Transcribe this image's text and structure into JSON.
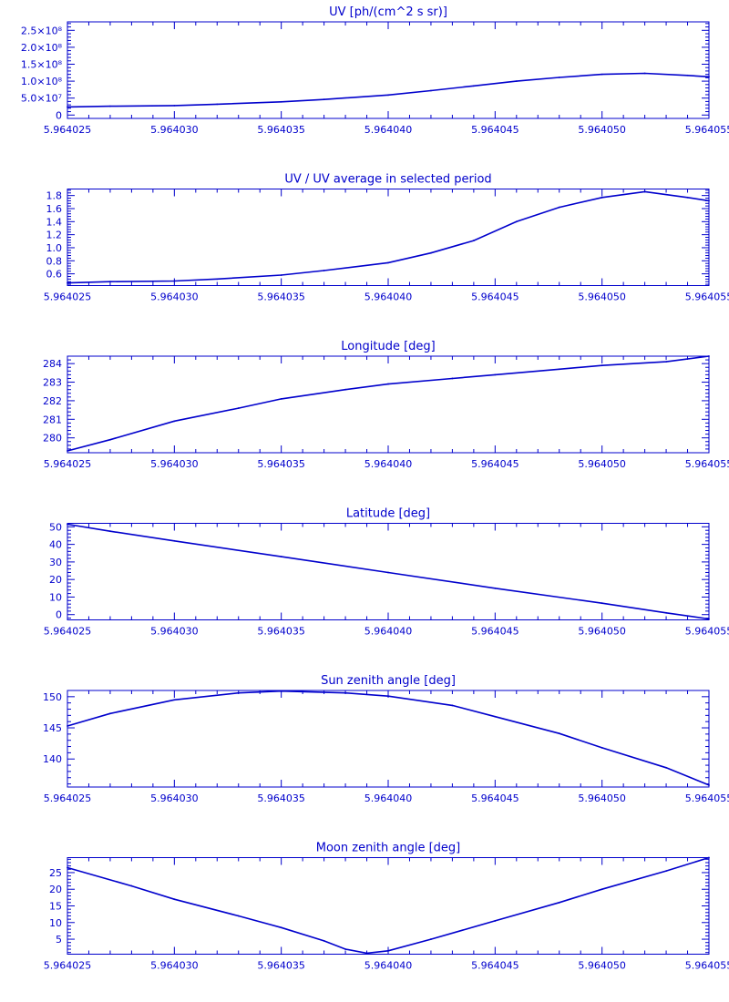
{
  "page": {
    "background": "#ffffff",
    "ink_color": "#0000cc"
  },
  "chart_data": [
    {
      "type": "line",
      "title": "UV [ph/(cm^2 s sr)]",
      "xlim": [
        5.964025,
        5.964055
      ],
      "ylim": [
        -10000000.0,
        275000000.0
      ],
      "x_ticks": [
        5.964025,
        5.96403,
        5.964035,
        5.96404,
        5.964045,
        5.96405,
        5.964055
      ],
      "x_tick_labels": [
        "5.964025",
        "5.964030",
        "5.964035",
        "5.964040",
        "5.964045",
        "5.964050",
        "5.964055"
      ],
      "y_ticks": [
        0,
        50000000.0,
        100000000.0,
        150000000.0,
        200000000.0,
        250000000.0
      ],
      "y_tick_labels": [
        "0",
        "5.0×10⁷",
        "1.0×10⁸",
        "1.5×10⁸",
        "2.0×10⁸",
        "2.5×10⁸"
      ],
      "series": [
        {
          "x": [
            5.964025,
            5.964027,
            5.96403,
            5.964032,
            5.964035,
            5.964037,
            5.96404,
            5.964042,
            5.964044,
            5.964046,
            5.964048,
            5.96405,
            5.964052,
            5.964054,
            5.964055
          ],
          "y": [
            24000000.0,
            26000000.0,
            28000000.0,
            32000000.0,
            39000000.0,
            46000000.0,
            59000000.0,
            72000000.0,
            86000000.0,
            100000000.0,
            111000000.0,
            120000000.0,
            123000000.0,
            117000000.0,
            113000000.0
          ]
        }
      ]
    },
    {
      "type": "line",
      "title": "UV / UV average in selected period",
      "xlim": [
        5.964025,
        5.964055
      ],
      "ylim": [
        0.42,
        1.9
      ],
      "x_ticks": [
        5.964025,
        5.96403,
        5.964035,
        5.96404,
        5.964045,
        5.96405,
        5.964055
      ],
      "x_tick_labels": [
        "5.964025",
        "5.964030",
        "5.964035",
        "5.964040",
        "5.964045",
        "5.964050",
        "5.964055"
      ],
      "y_ticks": [
        0.6,
        0.8,
        1.0,
        1.2,
        1.4,
        1.6,
        1.8
      ],
      "y_tick_labels": [
        "0.6",
        "0.8",
        "1.0",
        "1.2",
        "1.4",
        "1.6",
        "1.8"
      ],
      "series": [
        {
          "x": [
            5.964025,
            5.964027,
            5.96403,
            5.964032,
            5.964035,
            5.964037,
            5.96404,
            5.964042,
            5.964044,
            5.964046,
            5.964048,
            5.96405,
            5.964052,
            5.964054,
            5.964055
          ],
          "y": [
            0.46,
            0.48,
            0.49,
            0.52,
            0.58,
            0.65,
            0.77,
            0.92,
            1.11,
            1.4,
            1.62,
            1.77,
            1.86,
            1.77,
            1.72
          ]
        }
      ]
    },
    {
      "type": "line",
      "title": "Longitude [deg]",
      "xlim": [
        5.964025,
        5.964055
      ],
      "ylim": [
        279.2,
        284.4
      ],
      "x_ticks": [
        5.964025,
        5.96403,
        5.964035,
        5.96404,
        5.964045,
        5.96405,
        5.964055
      ],
      "x_tick_labels": [
        "5.964025",
        "5.964030",
        "5.964035",
        "5.964040",
        "5.964045",
        "5.964050",
        "5.964055"
      ],
      "y_ticks": [
        280,
        281,
        282,
        283,
        284
      ],
      "y_tick_labels": [
        "280",
        "281",
        "282",
        "283",
        "284"
      ],
      "series": [
        {
          "x": [
            5.964025,
            5.964027,
            5.96403,
            5.964033,
            5.964035,
            5.964038,
            5.96404,
            5.964043,
            5.964045,
            5.964048,
            5.96405,
            5.964053,
            5.964055
          ],
          "y": [
            279.3,
            279.9,
            280.9,
            281.6,
            282.1,
            282.6,
            282.9,
            283.2,
            283.4,
            283.7,
            283.9,
            284.1,
            284.4
          ]
        }
      ]
    },
    {
      "type": "line",
      "title": "Latitude [deg]",
      "xlim": [
        5.964025,
        5.964055
      ],
      "ylim": [
        -3,
        52
      ],
      "x_ticks": [
        5.964025,
        5.96403,
        5.964035,
        5.96404,
        5.964045,
        5.96405,
        5.964055
      ],
      "x_tick_labels": [
        "5.964025",
        "5.964030",
        "5.964035",
        "5.964040",
        "5.964045",
        "5.964050",
        "5.964055"
      ],
      "y_ticks": [
        0,
        10,
        20,
        30,
        40,
        50
      ],
      "y_tick_labels": [
        "0",
        "10",
        "20",
        "30",
        "40",
        "50"
      ],
      "series": [
        {
          "x": [
            5.964025,
            5.964027,
            5.96403,
            5.964035,
            5.96404,
            5.964045,
            5.96405,
            5.964053,
            5.964055
          ],
          "y": [
            51.5,
            47.5,
            42,
            33,
            24,
            15,
            6.5,
            1,
            -2.5
          ]
        }
      ]
    },
    {
      "type": "line",
      "title": "Sun zenith angle [deg]",
      "xlim": [
        5.964025,
        5.964055
      ],
      "ylim": [
        135.5,
        151
      ],
      "x_ticks": [
        5.964025,
        5.96403,
        5.964035,
        5.96404,
        5.964045,
        5.96405,
        5.964055
      ],
      "x_tick_labels": [
        "5.964025",
        "5.964030",
        "5.964035",
        "5.964040",
        "5.964045",
        "5.964050",
        "5.964055"
      ],
      "y_ticks": [
        140,
        145,
        150
      ],
      "y_tick_labels": [
        "140",
        "145",
        "150"
      ],
      "series": [
        {
          "x": [
            5.964025,
            5.964027,
            5.96403,
            5.964033,
            5.964035,
            5.964038,
            5.96404,
            5.964043,
            5.964045,
            5.964048,
            5.96405,
            5.964053,
            5.964055
          ],
          "y": [
            145.3,
            147.3,
            149.5,
            150.6,
            150.9,
            150.6,
            150.1,
            148.6,
            146.8,
            144.1,
            141.8,
            138.6,
            135.8
          ]
        }
      ]
    },
    {
      "type": "line",
      "title": "Moon zenith angle [deg]",
      "xlim": [
        5.964025,
        5.964055
      ],
      "ylim": [
        0.5,
        29.5
      ],
      "x_ticks": [
        5.964025,
        5.96403,
        5.964035,
        5.96404,
        5.964045,
        5.96405,
        5.964055
      ],
      "x_tick_labels": [
        "5.964025",
        "5.964030",
        "5.964035",
        "5.964040",
        "5.964045",
        "5.964050",
        "5.964055"
      ],
      "y_ticks": [
        5,
        10,
        15,
        20,
        25
      ],
      "y_tick_labels": [
        "5",
        "10",
        "15",
        "20",
        "25"
      ],
      "series": [
        {
          "x": [
            5.964025,
            5.964028,
            5.96403,
            5.964033,
            5.964035,
            5.964037,
            5.964038,
            5.964039,
            5.96404,
            5.964042,
            5.964045,
            5.964048,
            5.96405,
            5.964053,
            5.964055
          ],
          "y": [
            26.5,
            21,
            17,
            12,
            8.5,
            4.5,
            2,
            0.8,
            1.5,
            5,
            10.5,
            16,
            20,
            25.5,
            29.5
          ]
        }
      ]
    }
  ]
}
